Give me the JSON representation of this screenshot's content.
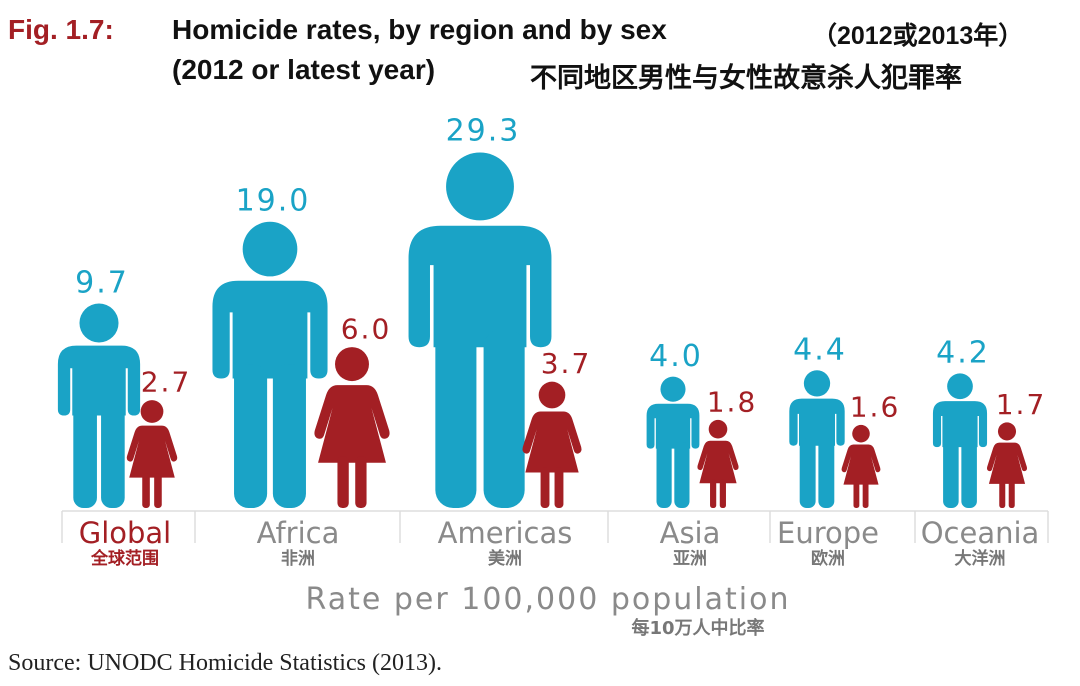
{
  "title": {
    "fig_label": "Fig. 1.7:",
    "line1": "Homicide rates, by region and by sex",
    "line1_cn": "（2012或2013年）",
    "line2": "(2012 or latest year)",
    "line2_cn": "不同地区男性与女性故意杀人犯罪率"
  },
  "source": "Source: UNODC Homicide Statistics (2013).",
  "chart_data": {
    "type": "bar",
    "title": "Homicide rates, by region and by sex (2012 or latest year)",
    "xlabel": "Rate per 100,000 population",
    "xlabel_cn": "每10万人中比率",
    "categories": [
      "Global",
      "Africa",
      "Americas",
      "Asia",
      "Europe",
      "Oceania"
    ],
    "categories_cn": [
      "全球范围",
      "非洲",
      "美洲",
      "亚洲",
      "欧洲",
      "大洋洲"
    ],
    "series": [
      {
        "name": "Male",
        "color": "#1aa3c6",
        "values": [
          9.7,
          19.0,
          29.3,
          4.0,
          4.4,
          4.2
        ],
        "labels": [
          "9.7",
          "19.0",
          "29.3",
          "4.0",
          "4.4",
          "4.2"
        ]
      },
      {
        "name": "Female",
        "color": "#a31f24",
        "values": [
          2.7,
          6.0,
          3.7,
          1.8,
          1.6,
          1.7
        ],
        "labels": [
          "2.7",
          "6.0",
          "3.7",
          "1.8",
          "1.6",
          "1.7"
        ]
      }
    ],
    "highlight_category_color": "#a31f24"
  }
}
